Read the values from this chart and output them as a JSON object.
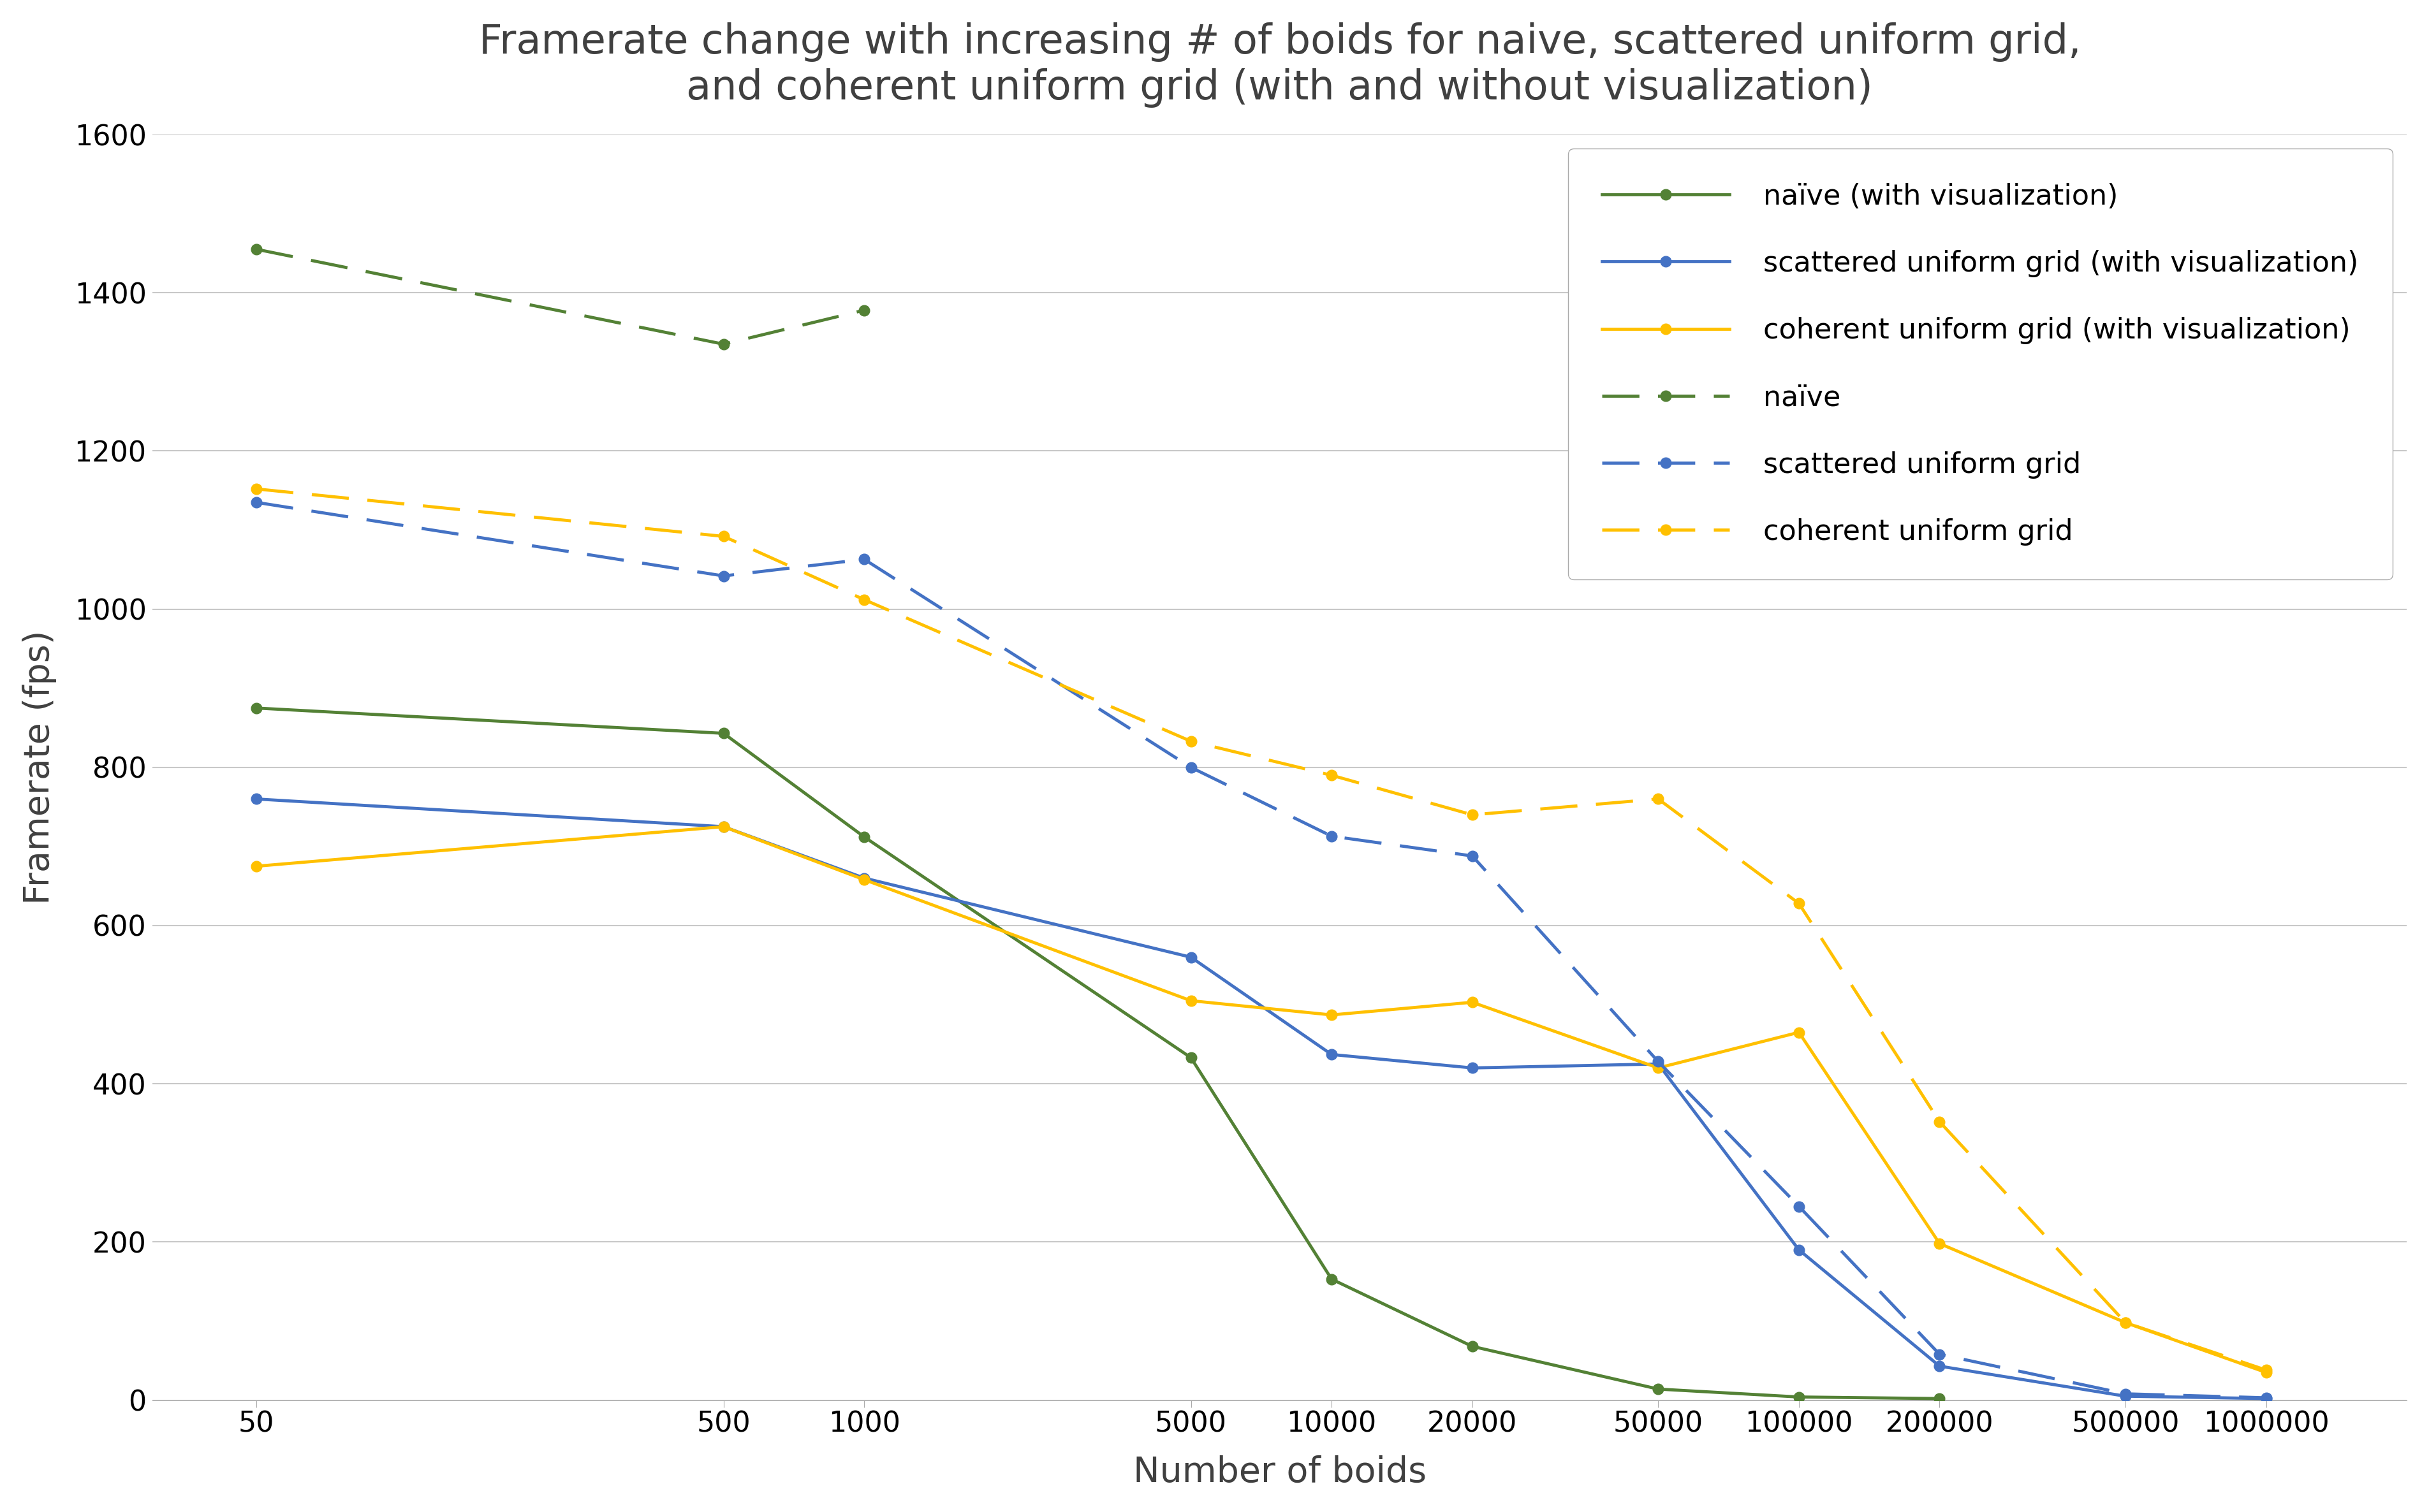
{
  "title": "Framerate change with increasing # of boids for naive, scattered uniform grid,\nand coherent uniform grid (with and without visualization)",
  "xlabel": "Number of boids",
  "ylabel": "Framerate (fps)",
  "x_values": [
    50,
    500,
    1000,
    5000,
    10000,
    20000,
    50000,
    100000,
    200000,
    500000,
    1000000
  ],
  "naive_vis": [
    875,
    843,
    712,
    433,
    153,
    68,
    14,
    4,
    2,
    null,
    null
  ],
  "scattered_vis": [
    760,
    725,
    660,
    560,
    437,
    420,
    425,
    190,
    43,
    5,
    2
  ],
  "coherent_vis": [
    675,
    725,
    658,
    505,
    487,
    503,
    420,
    465,
    198,
    98,
    35
  ],
  "naive_novis": [
    1455,
    1335,
    1378,
    null,
    null,
    null,
    null,
    null,
    null,
    null,
    null
  ],
  "scattered_novis": [
    1135,
    1042,
    1063,
    800,
    713,
    688,
    428,
    245,
    58,
    8,
    3
  ],
  "coherent_novis": [
    1152,
    1092,
    1012,
    833,
    790,
    740,
    760,
    628,
    352,
    98,
    38
  ],
  "naive_color": "#538135",
  "scattered_color": "#4472c4",
  "coherent_color": "#ffc000",
  "ylim": [
    0,
    1600
  ],
  "yticks": [
    0,
    200,
    400,
    600,
    800,
    1000,
    1200,
    1400,
    1600
  ],
  "x_tick_labels": [
    "50",
    "500",
    "1000",
    "5000",
    "10000",
    "20000",
    "50000",
    "100000",
    "200000",
    "500000",
    "1000000"
  ],
  "bg_color": "#ffffff",
  "grid_color": "#c8c8c8",
  "title_fontsize": 46,
  "axis_label_fontsize": 40,
  "tick_fontsize": 32,
  "legend_fontsize": 32,
  "linewidth": 3.5,
  "markersize": 12,
  "legend_handlelength": 4.5,
  "legend_labelspacing": 1.4,
  "legend_borderpad": 1.2
}
